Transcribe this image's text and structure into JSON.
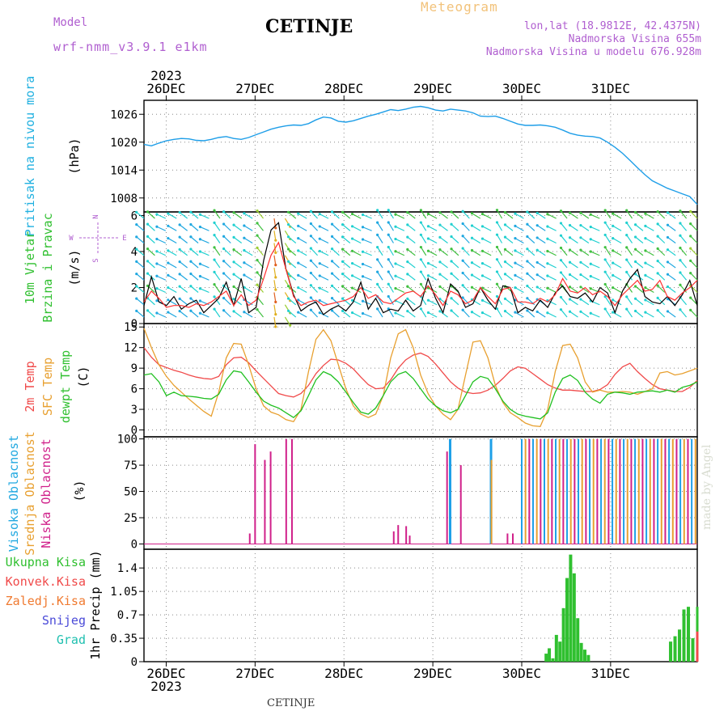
{
  "header": {
    "model_label": "Model",
    "model_name": "wrf-nmm_v3.9.1  e1km",
    "title": "CETINJE",
    "meteogram_label": "Meteogram",
    "lonlat": "lon,lat (18.9812E, 42.4375N)",
    "elevation": "Nadmorska Visina 655m",
    "model_elevation": "Nadmorska Visina u modelu 676.928m"
  },
  "footer": {
    "station": "CETINJE",
    "watermark": "made by Angel"
  },
  "colors": {
    "pressure": "#1e9ee8",
    "wind_mean": "#000000",
    "wind_gust": "#ff3030",
    "temp_2m": "#f04a4a",
    "temp_sfc": "#e8a030",
    "temp_dew": "#20c020",
    "cloud_high": "#1ea0e8",
    "cloud_mid": "#e8a030",
    "cloud_low": "#d0208a",
    "precip_total": "#30c030",
    "precip_conv": "#f04a4a"
  },
  "chart_data": {
    "type": "line",
    "time_axis": {
      "days": [
        "26DEC",
        "27DEC",
        "28DEC",
        "29DEC",
        "30DEC",
        "31DEC"
      ],
      "year": "2023"
    },
    "panels": [
      {
        "id": "pressure",
        "ylabel": "Pritisak na nivou mora",
        "unit": "(hPa)",
        "ylim": [
          1005,
          1029
        ],
        "yticks": [
          1008,
          1014,
          1020,
          1026
        ],
        "series": [
          {
            "values": [
              1019.5,
              1019.2,
              1019.8,
              1020.3,
              1020.6,
              1020.8,
              1020.7,
              1020.4,
              1020.3,
              1020.6,
              1021.0,
              1021.2,
              1020.8,
              1020.6,
              1021.0,
              1021.6,
              1022.2,
              1022.8,
              1023.2,
              1023.5,
              1023.7,
              1023.6,
              1024.0,
              1024.8,
              1025.4,
              1025.2,
              1024.5,
              1024.3,
              1024.6,
              1025.1,
              1025.6,
              1026.0,
              1026.5,
              1027.0,
              1026.8,
              1027.1,
              1027.5,
              1027.7,
              1027.4,
              1026.9,
              1026.7,
              1027.1,
              1026.9,
              1026.7,
              1026.3,
              1025.6,
              1025.5,
              1025.6,
              1025.1,
              1024.5,
              1023.9,
              1023.6,
              1023.6,
              1023.7,
              1023.5,
              1023.2,
              1022.6,
              1021.9,
              1021.5,
              1021.3,
              1021.2,
              1020.9,
              1020.0,
              1018.9,
              1017.6,
              1016.1,
              1014.5,
              1013.0,
              1011.7,
              1010.9,
              1010.1,
              1009.5,
              1008.9,
              1008.3,
              1006.6
            ]
          }
        ]
      },
      {
        "id": "wind",
        "ylabel": [
          "10m Vjetar",
          "Brzina i Pravac"
        ],
        "unit": "(m/s)",
        "compass": [
          "N",
          "W",
          "E",
          "S"
        ],
        "ylim": [
          0,
          6.2
        ],
        "yticks": [
          0,
          2,
          4,
          6
        ],
        "series": [
          {
            "values": [
              1.0,
              2.6,
              1.2,
              1.0,
              1.5,
              0.8,
              1.1,
              1.3,
              0.6,
              1.0,
              1.4,
              2.3,
              1.0,
              2.5,
              0.6,
              0.9,
              3.5,
              5.2,
              5.6,
              3.0,
              1.6,
              0.7,
              1.0,
              1.2,
              0.5,
              0.8,
              1.0,
              0.7,
              1.2,
              2.3,
              0.8,
              1.4,
              0.6,
              0.8,
              0.7,
              1.3,
              0.7,
              1.0,
              2.5,
              1.4,
              0.6,
              2.2,
              1.8,
              0.9,
              1.1,
              2.0,
              1.3,
              0.8,
              2.1,
              2.0,
              0.6,
              0.9,
              0.7,
              1.3,
              0.9,
              1.7,
              2.1,
              1.5,
              1.4,
              1.7,
              1.2,
              2.0,
              1.7,
              0.6,
              1.8,
              2.5,
              3.0,
              1.5,
              1.2,
              1.1,
              1.5,
              1.0,
              1.6,
              2.4,
              1.0
            ]
          },
          {
            "values": [
              1.2,
              1.8,
              1.4,
              0.9,
              1.0,
              1.0,
              0.9,
              1.1,
              1.0,
              1.2,
              1.5,
              1.8,
              1.0,
              1.6,
              1.0,
              1.3,
              2.5,
              3.8,
              4.5,
              3.0,
              1.5,
              1.0,
              1.2,
              1.3,
              1.0,
              1.1,
              1.2,
              1.3,
              1.5,
              2.0,
              1.4,
              1.6,
              1.2,
              1.1,
              1.4,
              1.7,
              1.8,
              1.5,
              2.1,
              1.6,
              1.0,
              1.8,
              1.6,
              1.1,
              1.3,
              2.0,
              1.5,
              1.1,
              1.9,
              2.0,
              1.2,
              1.2,
              1.1,
              1.4,
              1.2,
              1.6,
              2.5,
              1.8,
              1.7,
              2.0,
              1.6,
              1.8,
              1.5,
              1.0,
              1.6,
              2.0,
              2.4,
              1.8,
              1.9,
              2.4,
              1.5,
              1.3,
              1.7,
              2.0,
              2.4
            ]
          }
        ]
      },
      {
        "id": "temperature",
        "ylabel": [
          "2m Temp",
          "SFC Temp",
          "dewpt Temp"
        ],
        "unit": "(C)",
        "ylim": [
          -1,
          15.5
        ],
        "yticks": [
          0,
          3,
          6,
          9,
          12,
          15
        ],
        "series": [
          {
            "name": "2m Temp",
            "values": [
              12.0,
              10.6,
              9.5,
              9.1,
              8.7,
              8.4,
              8.0,
              7.7,
              7.5,
              7.4,
              7.8,
              9.5,
              10.5,
              10.6,
              9.8,
              8.6,
              7.5,
              6.4,
              5.3,
              5.0,
              4.8,
              5.3,
              6.5,
              8.2,
              9.4,
              10.3,
              10.2,
              9.7,
              8.9,
              7.7,
              6.6,
              6.0,
              6.1,
              7.3,
              9.0,
              10.2,
              10.9,
              11.2,
              10.7,
              9.6,
              8.3,
              7.0,
              6.1,
              5.5,
              5.3,
              5.4,
              5.8,
              6.5,
              7.5,
              8.6,
              9.2,
              9.0,
              8.2,
              7.4,
              6.6,
              6.1,
              5.8,
              5.8,
              5.7,
              5.6,
              5.6,
              5.9,
              6.6,
              8.1,
              9.2,
              9.7,
              8.5,
              7.5,
              6.6,
              6.0,
              5.8,
              5.6,
              5.6,
              6.2,
              7.2
            ]
          },
          {
            "name": "SFC Temp",
            "values": [
              14.8,
              12.0,
              9.5,
              7.8,
              6.5,
              5.5,
              4.5,
              3.6,
              2.7,
              2.0,
              5.5,
              10.5,
              12.6,
              12.5,
              9.5,
              6.0,
              3.5,
              2.6,
              2.2,
              1.5,
              1.2,
              3.0,
              8.5,
              13.2,
              14.6,
              13.0,
              9.5,
              6.0,
              3.5,
              2.3,
              1.8,
              2.3,
              5.0,
              10.5,
              14.0,
              14.6,
              12.0,
              8.0,
              5.3,
              3.5,
              2.3,
              1.5,
              3.0,
              8.0,
              12.8,
              13.0,
              10.5,
              6.5,
              4.0,
              2.5,
              1.8,
              1.0,
              0.6,
              0.5,
              3.0,
              8.5,
              12.3,
              12.5,
              10.5,
              7.0,
              5.5,
              5.8,
              5.5,
              5.5,
              5.6,
              5.5,
              5.2,
              5.6,
              6.0,
              8.3,
              8.5,
              8.0,
              8.2,
              8.6,
              9.0
            ]
          },
          {
            "name": "dewpt Temp",
            "values": [
              8.0,
              8.2,
              7.0,
              5.0,
              5.5,
              5.0,
              4.9,
              4.8,
              4.6,
              4.5,
              5.2,
              7.3,
              8.6,
              8.4,
              7.0,
              5.5,
              4.2,
              3.6,
              3.2,
              2.5,
              1.8,
              2.8,
              5.0,
              7.3,
              8.5,
              8.0,
              7.0,
              5.5,
              4.0,
              2.6,
              2.3,
              3.2,
              5.0,
              7.0,
              8.1,
              8.5,
              7.5,
              6.0,
              4.5,
              3.5,
              2.8,
              2.5,
              3.0,
              5.0,
              7.0,
              7.8,
              7.5,
              6.0,
              4.2,
              3.0,
              2.3,
              2.0,
              1.8,
              1.6,
              2.5,
              5.5,
              7.5,
              8.0,
              7.2,
              5.5,
              4.5,
              3.9,
              5.2,
              5.5,
              5.4,
              5.2,
              5.5,
              5.6,
              5.7,
              5.5,
              5.8,
              5.5,
              6.2,
              6.5,
              7.0
            ]
          }
        ]
      },
      {
        "id": "cloud",
        "ylabel": [
          "Visoka Oblacnost",
          "Srednja Oblacnost",
          "Niska Oblacnost"
        ],
        "unit": "(%)",
        "ylim": [
          -5,
          102
        ],
        "yticks": [
          0,
          25,
          50,
          75,
          100
        ],
        "bars": [
          {
            "x": 1.88,
            "layer": "low",
            "value": 10
          },
          {
            "x": 2.0,
            "layer": "low",
            "value": 95
          },
          {
            "x": 2.22,
            "layer": "low",
            "value": 80
          },
          {
            "x": 2.35,
            "layer": "low",
            "value": 88
          },
          {
            "x": 2.7,
            "layer": "low",
            "value": 100
          },
          {
            "x": 2.83,
            "layer": "low",
            "value": 100
          },
          {
            "x": 5.12,
            "layer": "low",
            "value": 12
          },
          {
            "x": 5.22,
            "layer": "low",
            "value": 18
          },
          {
            "x": 5.4,
            "layer": "low",
            "value": 17
          },
          {
            "x": 5.48,
            "layer": "low",
            "value": 8
          },
          {
            "x": 6.32,
            "layer": "low",
            "value": 88
          },
          {
            "x": 6.38,
            "layer": "high",
            "value": 100
          },
          {
            "x": 6.63,
            "layer": "low",
            "value": 75
          },
          {
            "x": 7.3,
            "layer": "high",
            "value": 100
          },
          {
            "x": 7.32,
            "layer": "mid",
            "value": 80
          },
          {
            "x": 7.68,
            "layer": "low",
            "value": 10
          },
          {
            "x": 7.8,
            "layer": "low",
            "value": 10
          }
        ],
        "dense_from": 8.0,
        "dense_to": 11.95,
        "dense_value": 100
      },
      {
        "id": "precip",
        "ylabel": "1hr Precip",
        "unit": "(mm)",
        "ylim": [
          0,
          1.68
        ],
        "yticks": [
          0,
          0.35,
          0.7,
          1.05,
          1.4
        ],
        "ytick_labels": [
          "0",
          "0.35",
          "0.7",
          "1.05",
          "1.4"
        ],
        "legend": [
          "Ukupna Kisa",
          "Konvek.Kisa",
          "Zaledj.Kisa",
          "Snijeg",
          "Grad"
        ],
        "bars_total": [
          {
            "x": 8.55,
            "value": 0.12
          },
          {
            "x": 8.62,
            "value": 0.2
          },
          {
            "x": 8.7,
            "value": 0.05
          },
          {
            "x": 8.78,
            "value": 0.4
          },
          {
            "x": 8.86,
            "value": 0.3
          },
          {
            "x": 8.94,
            "value": 0.8
          },
          {
            "x": 9.02,
            "value": 1.25
          },
          {
            "x": 9.1,
            "value": 1.6
          },
          {
            "x": 9.18,
            "value": 1.32
          },
          {
            "x": 9.26,
            "value": 0.65
          },
          {
            "x": 9.34,
            "value": 0.28
          },
          {
            "x": 9.42,
            "value": 0.18
          },
          {
            "x": 9.5,
            "value": 0.1
          },
          {
            "x": 11.35,
            "value": 0.3
          },
          {
            "x": 11.45,
            "value": 0.38
          },
          {
            "x": 11.55,
            "value": 0.48
          },
          {
            "x": 11.65,
            "value": 0.78
          },
          {
            "x": 11.75,
            "value": 0.82
          },
          {
            "x": 11.85,
            "value": 0.35
          }
        ]
      }
    ]
  }
}
